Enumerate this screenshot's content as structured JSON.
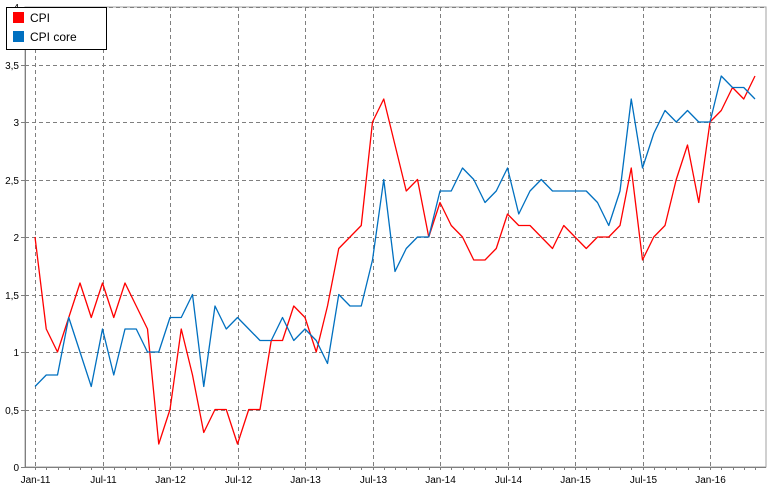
{
  "chart_data": {
    "type": "line",
    "title": "",
    "xlabel": "",
    "ylabel": "",
    "grid": true,
    "legend_position": "top-left",
    "ylim": [
      0,
      4
    ],
    "y_ticks": [
      "0",
      "0,5",
      "1",
      "1,5",
      "2",
      "2,5",
      "3",
      "3,5",
      "4"
    ],
    "x_ticks": [
      "Jan-11",
      "Jul-11",
      "Jan-12",
      "Jul-12",
      "Jan-13",
      "Jul-13",
      "Jan-14",
      "Jul-14",
      "Jan-15",
      "Jul-15",
      "Jan-16"
    ],
    "x": [
      "Jan-11",
      "Feb-11",
      "Mar-11",
      "Apr-11",
      "May-11",
      "Jun-11",
      "Jul-11",
      "Aug-11",
      "Sep-11",
      "Oct-11",
      "Nov-11",
      "Dec-11",
      "Jan-12",
      "Feb-12",
      "Mar-12",
      "Apr-12",
      "May-12",
      "Jun-12",
      "Jul-12",
      "Aug-12",
      "Sep-12",
      "Oct-12",
      "Nov-12",
      "Dec-12",
      "Jan-13",
      "Feb-13",
      "Mar-13",
      "Apr-13",
      "May-13",
      "Jun-13",
      "Jul-13",
      "Aug-13",
      "Sep-13",
      "Oct-13",
      "Nov-13",
      "Dec-13",
      "Jan-14",
      "Feb-14",
      "Mar-14",
      "Apr-14",
      "May-14",
      "Jun-14",
      "Jul-14",
      "Aug-14",
      "Sep-14",
      "Oct-14",
      "Nov-14",
      "Dec-14",
      "Jan-15",
      "Feb-15",
      "Mar-15",
      "Apr-15",
      "May-15",
      "Jun-15",
      "Jul-15",
      "Aug-15",
      "Sep-15",
      "Oct-15",
      "Nov-15",
      "Dec-15",
      "Jan-16",
      "Feb-16",
      "Mar-16",
      "Apr-16",
      "May-16"
    ],
    "series": [
      {
        "name": "CPI",
        "color": "#ff0000",
        "values": [
          2.0,
          1.2,
          1.0,
          1.3,
          1.6,
          1.3,
          1.6,
          1.3,
          1.6,
          1.4,
          1.2,
          0.2,
          0.5,
          1.2,
          0.8,
          0.3,
          0.5,
          0.5,
          0.2,
          0.5,
          0.5,
          1.1,
          1.1,
          1.4,
          1.3,
          1.0,
          1.4,
          1.9,
          2.0,
          2.1,
          3.0,
          3.2,
          2.8,
          2.4,
          2.5,
          2.0,
          2.3,
          2.1,
          2.0,
          1.8,
          1.8,
          1.9,
          2.2,
          2.1,
          2.1,
          2.0,
          1.9,
          2.1,
          2.0,
          1.9,
          2.0,
          2.0,
          2.1,
          2.6,
          1.8,
          2.0,
          2.1,
          2.5,
          2.8,
          2.3,
          3.0,
          3.1,
          3.3,
          3.2,
          3.4
        ]
      },
      {
        "name": "CPI core",
        "color": "#0070c0",
        "values": [
          0.7,
          0.8,
          0.8,
          1.3,
          1.0,
          0.7,
          1.2,
          0.8,
          1.2,
          1.2,
          1.0,
          1.0,
          1.3,
          1.3,
          1.5,
          0.7,
          1.4,
          1.2,
          1.3,
          1.2,
          1.1,
          1.1,
          1.3,
          1.1,
          1.2,
          1.1,
          0.9,
          1.5,
          1.4,
          1.4,
          1.8,
          2.5,
          1.7,
          1.9,
          2.0,
          2.0,
          2.4,
          2.4,
          2.6,
          2.5,
          2.3,
          2.4,
          2.6,
          2.2,
          2.4,
          2.5,
          2.4,
          2.4,
          2.4,
          2.4,
          2.3,
          2.1,
          2.4,
          3.2,
          2.6,
          2.9,
          3.1,
          3.0,
          3.1,
          3.0,
          3.0,
          3.4,
          3.3,
          3.3,
          3.2
        ]
      }
    ]
  }
}
